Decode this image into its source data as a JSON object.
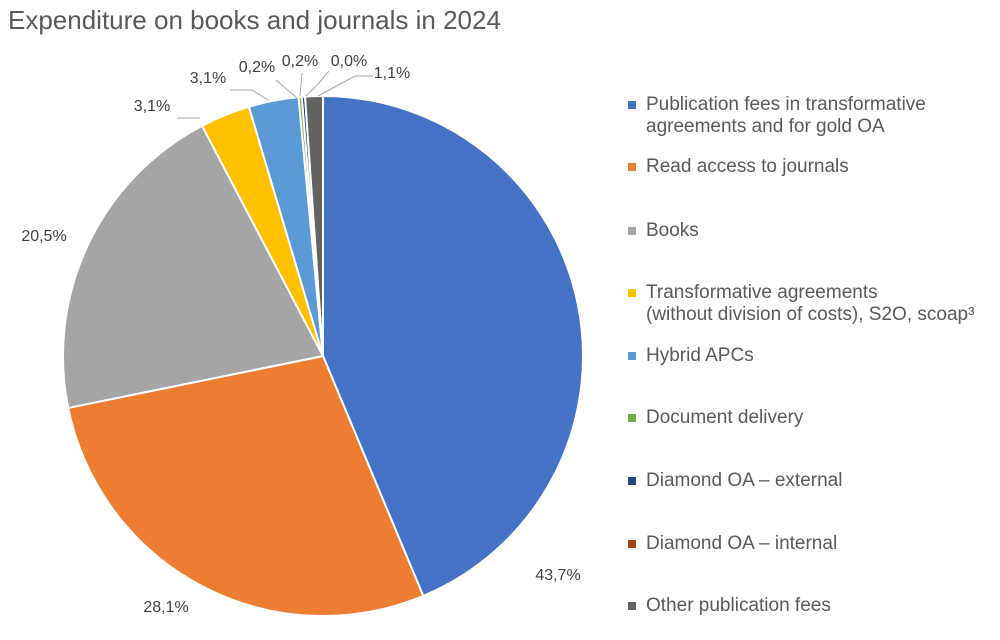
{
  "chart_data": {
    "type": "pie",
    "title": "Expenditure on books and journals in 2024",
    "legend_position": "right",
    "slices": [
      {
        "label": "Publication fees in transformative agreements and for gold OA",
        "label_lines": [
          "Publication fees in transformative",
          "agreements and for gold OA"
        ],
        "value": 43.7,
        "value_label": "43,7%",
        "color": "#4472C4"
      },
      {
        "label": "Read access to journals",
        "label_lines": [
          "Read access to journals"
        ],
        "value": 28.1,
        "value_label": "28,1%",
        "color": "#ED7D31"
      },
      {
        "label": "Books",
        "label_lines": [
          "Books"
        ],
        "value": 20.5,
        "value_label": "20,5%",
        "color": "#A5A5A5"
      },
      {
        "label": "Transformative agreements (without division of costs), S2O, scoap³",
        "label_lines": [
          "Transformative agreements",
          "(without division of costs), S2O, scoap³"
        ],
        "value": 3.1,
        "value_label": "3,1%",
        "color": "#FFC000"
      },
      {
        "label": "Hybrid APCs",
        "label_lines": [
          "Hybrid APCs"
        ],
        "value": 3.1,
        "value_label": "3,1%",
        "color": "#5B9BD5"
      },
      {
        "label": "Document delivery",
        "label_lines": [
          "Document delivery"
        ],
        "value": 0.2,
        "value_label": "0,2%",
        "color": "#70AD47"
      },
      {
        "label": "Diamond OA – external",
        "label_lines": [
          "Diamond OA – external"
        ],
        "value": 0.2,
        "value_label": "0,2%",
        "color": "#264478"
      },
      {
        "label": "Diamond OA – internal",
        "label_lines": [
          "Diamond OA – internal"
        ],
        "value": 0.0,
        "value_label": "0,0%",
        "color": "#9E480E"
      },
      {
        "label": "Other publication fees",
        "label_lines": [
          "Other publication fees"
        ],
        "value": 1.1,
        "value_label": "1,1%",
        "color": "#636363"
      }
    ]
  }
}
